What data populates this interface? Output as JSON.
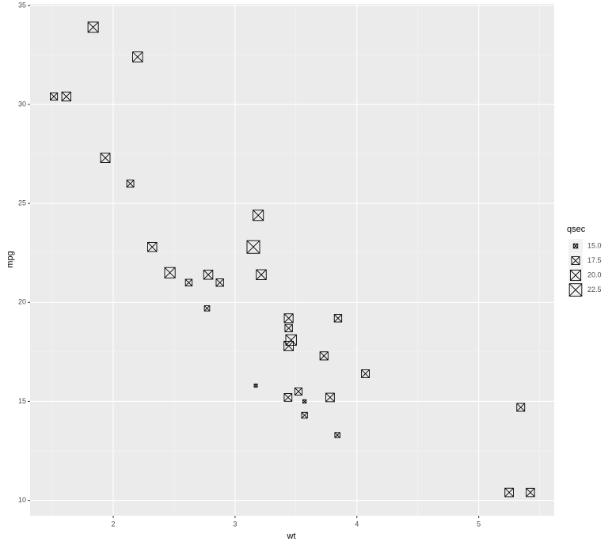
{
  "chart_data": {
    "type": "scatter",
    "x_label": "wt",
    "y_label": "mpg",
    "size_label": "qsec",
    "x": [
      2.62,
      2.875,
      2.32,
      3.215,
      3.44,
      3.46,
      3.57,
      3.19,
      3.15,
      3.44,
      3.44,
      4.07,
      3.73,
      3.78,
      5.25,
      5.424,
      5.345,
      2.2,
      1.615,
      1.835,
      2.465,
      3.52,
      3.435,
      3.84,
      3.845,
      1.935,
      2.14,
      1.513,
      3.17,
      2.77,
      3.57,
      2.78
    ],
    "values": [
      21.0,
      21.0,
      22.8,
      21.4,
      18.7,
      18.1,
      14.3,
      24.4,
      22.8,
      19.2,
      17.8,
      16.4,
      17.3,
      15.2,
      10.4,
      10.4,
      14.7,
      32.4,
      30.4,
      33.9,
      21.5,
      15.5,
      15.2,
      13.3,
      19.2,
      27.3,
      26.0,
      30.4,
      15.8,
      19.7,
      15.0,
      21.4
    ],
    "sizes": [
      16.46,
      17.02,
      18.61,
      19.44,
      17.02,
      20.22,
      15.84,
      20.0,
      22.9,
      18.3,
      18.9,
      17.4,
      17.6,
      18.0,
      17.98,
      17.82,
      17.42,
      19.47,
      18.52,
      19.9,
      20.01,
      16.87,
      17.3,
      15.41,
      17.05,
      18.9,
      16.7,
      16.9,
      14.5,
      15.5,
      14.6,
      18.6
    ],
    "color": "#000000",
    "xlim": [
      1.31745,
      5.61955
    ],
    "xticks": [
      2,
      3,
      4,
      5
    ],
    "xminorticks": [
      1.5,
      2.5,
      3.5,
      4.5,
      5.5
    ],
    "ylim": [
      9.225,
      35.075
    ],
    "yticks": [
      10,
      15,
      20,
      25,
      30,
      35
    ],
    "yminorticks": [
      12.5,
      17.5,
      22.5,
      27.5,
      32.5
    ],
    "size_legend": [
      {
        "value": 15,
        "label": "15.0"
      },
      {
        "value": 17.5,
        "label": "17.5"
      },
      {
        "value": 20,
        "label": "20.0"
      },
      {
        "value": 22.5,
        "label": "22.5"
      }
    ],
    "grid": true
  }
}
